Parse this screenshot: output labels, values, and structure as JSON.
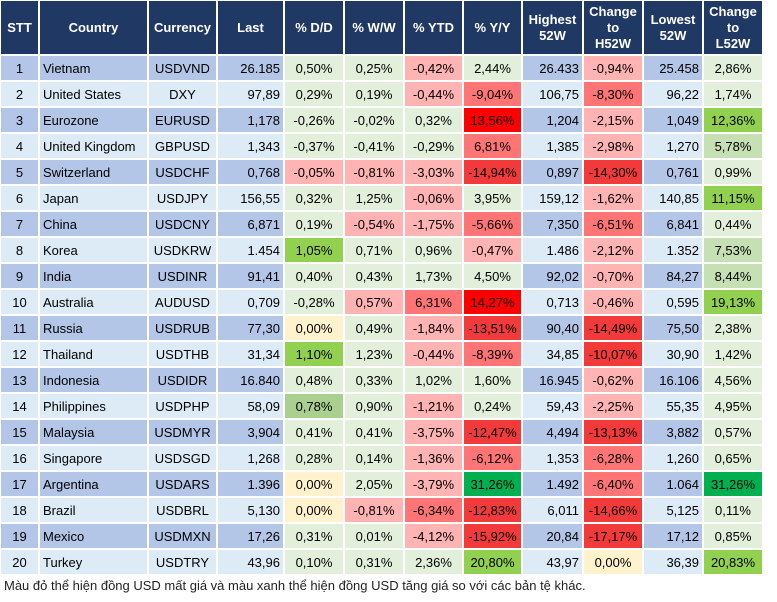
{
  "headers": [
    "STT",
    "Country",
    "Currency",
    "Last",
    "% D/D",
    "% W/W",
    "% YTD",
    "% Y/Y",
    "Highest\n52W",
    "Change\nto\nH52W",
    "Lowest\n52W",
    "Change\nto\nL52W"
  ],
  "colors": {
    "header": "#203864",
    "row_odd": "#b4c6e7",
    "row_even": "#ddebf7",
    "light_green": "#e2efda",
    "pale_green": "#c6e0b4",
    "mid_green": "#a9d08e",
    "green": "#92d050",
    "dark_green": "#00b050",
    "light_red": "#ffb3b3",
    "mid_red": "#ff7575",
    "strong_red": "#f23a3a",
    "red": "#ff0000",
    "yellow": "#fff2cc"
  },
  "rows": [
    {
      "v": [
        "1",
        "Vietnam",
        "USDVND",
        "26.185",
        "0,50%",
        "0,25%",
        "-0,42%",
        "2,44%",
        "26.433",
        "-0,94%",
        "25.458",
        "2,86%"
      ],
      "c": [
        "g0",
        "g0",
        "r1",
        "g0",
        "r1",
        "g0"
      ]
    },
    {
      "v": [
        "2",
        "United States",
        "DXY",
        "97,89",
        "0,29%",
        "0,19%",
        "-0,44%",
        "-9,04%",
        "106,75",
        "-8,30%",
        "96,22",
        "1,74%"
      ],
      "c": [
        "g0",
        "g0",
        "r1",
        "r2",
        "r2",
        "g0"
      ]
    },
    {
      "v": [
        "3",
        "Eurozone",
        "EURUSD",
        "1,178",
        "-0,26%",
        "-0,02%",
        "0,32%",
        "13,56%",
        "1,204",
        "-2,15%",
        "1,049",
        "12,36%"
      ],
      "c": [
        "g0",
        "g0",
        "g0",
        "r4",
        "r1",
        "g3"
      ]
    },
    {
      "v": [
        "4",
        "United Kingdom",
        "GBPUSD",
        "1,343",
        "-0,37%",
        "-0,41%",
        "-0,29%",
        "6,81%",
        "1,385",
        "-2,98%",
        "1,270",
        "5,78%"
      ],
      "c": [
        "g0",
        "g0",
        "g0",
        "r2",
        "r1",
        "g1"
      ]
    },
    {
      "v": [
        "5",
        "Switzerland",
        "USDCHF",
        "0,768",
        "-0,05%",
        "-0,81%",
        "-3,03%",
        "-14,94%",
        "0,897",
        "-14,30%",
        "0,761",
        "0,99%"
      ],
      "c": [
        "r1",
        "r1",
        "r1",
        "r3",
        "r3",
        "g0"
      ]
    },
    {
      "v": [
        "6",
        "Japan",
        "USDJPY",
        "156,55",
        "0,32%",
        "1,25%",
        "-0,06%",
        "3,95%",
        "159,12",
        "-1,62%",
        "140,85",
        "11,15%"
      ],
      "c": [
        "g0",
        "g0",
        "r1",
        "g0",
        "r1",
        "g3"
      ]
    },
    {
      "v": [
        "7",
        "China",
        "USDCNY",
        "6,871",
        "0,19%",
        "-0,54%",
        "-1,75%",
        "-5,66%",
        "7,350",
        "-6,51%",
        "6,841",
        "0,44%"
      ],
      "c": [
        "g0",
        "r1",
        "r1",
        "r2",
        "r2",
        "g0"
      ]
    },
    {
      "v": [
        "8",
        "Korea",
        "USDKRW",
        "1.454",
        "1,05%",
        "0,71%",
        "0,96%",
        "-0,47%",
        "1.486",
        "-2,12%",
        "1.352",
        "7,53%"
      ],
      "c": [
        "g3",
        "g0",
        "g0",
        "r1",
        "r1",
        "g1"
      ]
    },
    {
      "v": [
        "9",
        "India",
        "USDINR",
        "91,41",
        "0,40%",
        "0,43%",
        "1,73%",
        "4,50%",
        "92,02",
        "-0,70%",
        "84,27",
        "8,44%"
      ],
      "c": [
        "g0",
        "g0",
        "g0",
        "g0",
        "r1",
        "g1"
      ]
    },
    {
      "v": [
        "10",
        "Australia",
        "AUDUSD",
        "0,709",
        "-0,28%",
        "0,57%",
        "6,31%",
        "14,27%",
        "0,713",
        "-0,46%",
        "0,595",
        "19,13%"
      ],
      "c": [
        "g0",
        "r1",
        "r2",
        "r4",
        "r1",
        "g3"
      ]
    },
    {
      "v": [
        "11",
        "Russia",
        "USDRUB",
        "77,30",
        "0,00%",
        "0,49%",
        "-1,84%",
        "-13,51%",
        "90,40",
        "-14,49%",
        "75,50",
        "2,38%"
      ],
      "c": [
        "y",
        "g0",
        "r1",
        "r3",
        "r3",
        "g0"
      ]
    },
    {
      "v": [
        "12",
        "Thailand",
        "USDTHB",
        "31,34",
        "1,10%",
        "1,23%",
        "-0,44%",
        "-8,39%",
        "34,85",
        "-10,07%",
        "30,90",
        "1,42%"
      ],
      "c": [
        "g3",
        "g0",
        "r1",
        "r2",
        "r3",
        "g0"
      ]
    },
    {
      "v": [
        "13",
        "Indonesia",
        "USDIDR",
        "16.840",
        "0,48%",
        "0,33%",
        "1,02%",
        "1,60%",
        "16.945",
        "-0,62%",
        "16.106",
        "4,56%"
      ],
      "c": [
        "g0",
        "g0",
        "g0",
        "g0",
        "r1",
        "g0"
      ]
    },
    {
      "v": [
        "14",
        "Philippines",
        "USDPHP",
        "58,09",
        "0,78%",
        "0,90%",
        "-1,21%",
        "0,24%",
        "59,43",
        "-2,25%",
        "55,35",
        "4,95%"
      ],
      "c": [
        "g2",
        "g0",
        "r1",
        "g0",
        "r1",
        "g0"
      ]
    },
    {
      "v": [
        "15",
        "Malaysia",
        "USDMYR",
        "3,904",
        "0,41%",
        "0,41%",
        "-3,75%",
        "-12,47%",
        "4,494",
        "-13,13%",
        "3,882",
        "0,57%"
      ],
      "c": [
        "g0",
        "g0",
        "r1",
        "r3",
        "r3",
        "g0"
      ]
    },
    {
      "v": [
        "16",
        "Singapore",
        "USDSGD",
        "1,268",
        "0,28%",
        "0,14%",
        "-1,36%",
        "-6,12%",
        "1,353",
        "-6,28%",
        "1,260",
        "0,65%"
      ],
      "c": [
        "g0",
        "g0",
        "r1",
        "r2",
        "r2",
        "g0"
      ]
    },
    {
      "v": [
        "17",
        "Argentina",
        "USDARS",
        "1.396",
        "0,00%",
        "2,05%",
        "-3,79%",
        "31,26%",
        "1.492",
        "-6,40%",
        "1.064",
        "31,26%"
      ],
      "c": [
        "y",
        "g0",
        "r1",
        "g4",
        "r2",
        "g4"
      ]
    },
    {
      "v": [
        "18",
        "Brazil",
        "USDBRL",
        "5,130",
        "0,00%",
        "-0,81%",
        "-6,34%",
        "-12,83%",
        "6,011",
        "-14,66%",
        "5,125",
        "0,11%"
      ],
      "c": [
        "y",
        "r1",
        "r2",
        "r3",
        "r3",
        "g0"
      ]
    },
    {
      "v": [
        "19",
        "Mexico",
        "USDMXN",
        "17,26",
        "0,31%",
        "0,01%",
        "-4,12%",
        "-15,92%",
        "20,84",
        "-17,17%",
        "17,12",
        "0,85%"
      ],
      "c": [
        "g0",
        "g0",
        "r1",
        "r3",
        "r3",
        "g0"
      ]
    },
    {
      "v": [
        "20",
        "Turkey",
        "USDTRY",
        "43,96",
        "0,10%",
        "0,31%",
        "2,36%",
        "20,80%",
        "43,97",
        "0,00%",
        "36,39",
        "20,83%"
      ],
      "c": [
        "g0",
        "g0",
        "g0",
        "g3",
        "y",
        "g3"
      ]
    }
  ],
  "footer_note": "Màu đỏ thể hiện đồng USD mất giá và màu xanh thể hiện đồng USD tăng giá so với các bản tệ khác."
}
